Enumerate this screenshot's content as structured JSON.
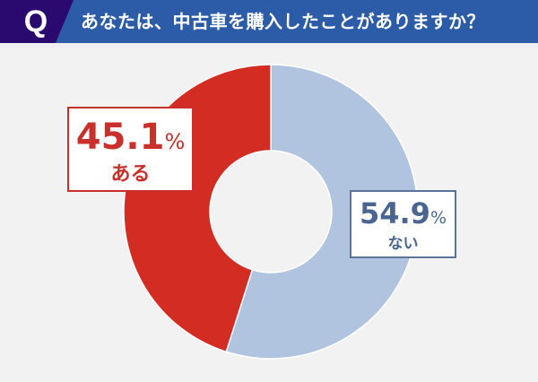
{
  "header": {
    "q_label": "Q",
    "question": "あなたは、中古車を購入したことがありますか？",
    "colors": {
      "q_bg": "#2a0a6e",
      "bar_bg": "#2c5ca8"
    }
  },
  "labels": {
    "ari": {
      "value": "45.1",
      "unit": "%",
      "answer": "ある",
      "color": "#c9302c"
    },
    "nai": {
      "value": "54.9",
      "unit": "%",
      "answer": "ない",
      "color": "#4a6590"
    }
  },
  "chart_data": {
    "type": "pie",
    "variant": "donut",
    "title": "あなたは、中古車を購入したことがありますか？",
    "categories": [
      "ない",
      "ある"
    ],
    "values": [
      54.9,
      45.1
    ],
    "unit": "%",
    "colors": [
      "#b0c4e0",
      "#d32d23"
    ],
    "start_angle": "12 o'clock, clockwise",
    "legend": "none (inline labels)"
  }
}
